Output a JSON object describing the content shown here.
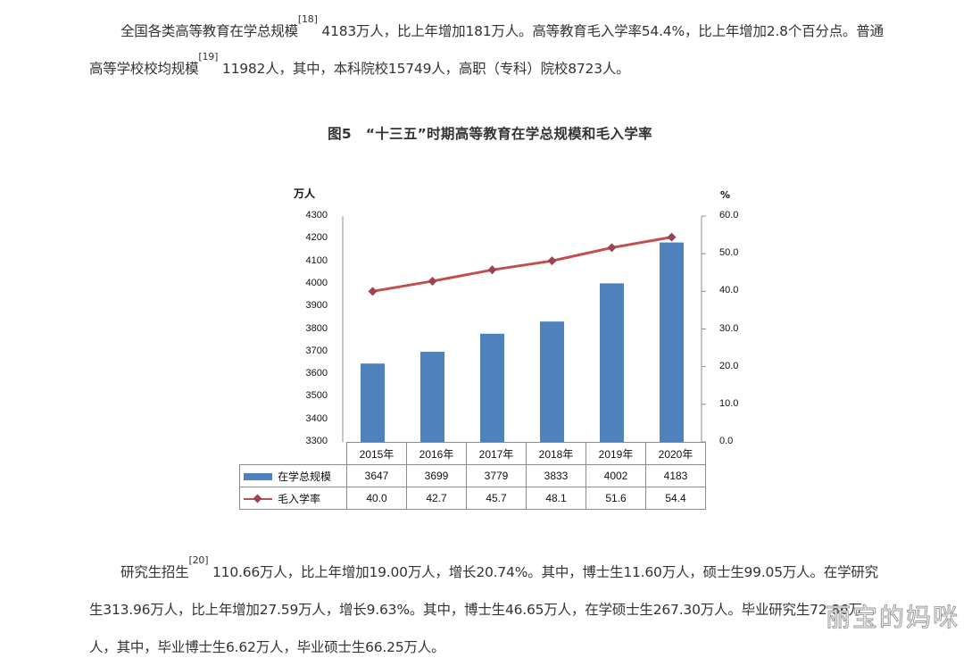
{
  "paragraphs": {
    "p1": {
      "part1": "全国各类高等教育在学总规模",
      "ref1": "[18]",
      "part2": " 4183万人，比上年增加181万人。高等教育毛入学率54.4%，比上年增加2.8个百分点。普通高等学校校均规模",
      "ref2": "[19]",
      "part3": " 11982人，其中，本科院校15749人，高职（专科）院校8723人。"
    },
    "p3": {
      "part1": "研究生招生",
      "ref1": "[20]",
      "part2": " 110.66万人，比上年增加19.00万人，增长20.74%。其中，博士生11.60万人，硕士生99.05万人。在学研究生313.96万人，比上年增加27.59万人，增长9.63%。其中，博士生46.65万人，在学硕士生267.30万人。毕业研究生72.86万人，其中，毕业博士生6.62万人，毕业硕士生66.25万人。"
    }
  },
  "figure": {
    "title": "图5　“十三五”时期高等教育在学总规模和毛入学率"
  },
  "watermark": "丽宝的妈咪",
  "colors": {
    "bar": "#4F81BD",
    "line": "#C0504D",
    "marker": "#9B4356",
    "axis": "#8c8c8c"
  },
  "chart_data": {
    "type": "bar",
    "title": "图5　“十三五”时期高等教育在学总规模和毛入学率",
    "categories": [
      "2015年",
      "2016年",
      "2017年",
      "2018年",
      "2019年",
      "2020年"
    ],
    "series": [
      {
        "name": "在学总规模",
        "type": "bar",
        "axis": "left",
        "values": [
          3647,
          3699,
          3779,
          3833,
          4002,
          4183
        ]
      },
      {
        "name": "毛入学率",
        "type": "line",
        "axis": "right",
        "values": [
          40.0,
          42.7,
          45.7,
          48.1,
          51.6,
          54.4
        ]
      }
    ],
    "ylabel": "万人",
    "ylabel_right": "%",
    "ylim": [
      3300,
      4300
    ],
    "ylim_right": [
      0,
      60
    ],
    "yticks": [
      "4300",
      "4200",
      "4100",
      "4000",
      "3900",
      "3800",
      "3700",
      "3600",
      "3500",
      "3400",
      "3300"
    ],
    "yticks_right": [
      "60.0",
      "50.0",
      "40.0",
      "30.0",
      "20.0",
      "10.0",
      "0.0"
    ],
    "grid": false,
    "legend_position": "data-table",
    "data_table": {
      "rows": [
        {
          "label": "在学总规模",
          "values": [
            "3647",
            "3699",
            "3779",
            "3833",
            "4002",
            "4183"
          ]
        },
        {
          "label": "毛入学率",
          "values": [
            "40.0",
            "42.7",
            "45.7",
            "48.1",
            "51.6",
            "54.4"
          ]
        }
      ]
    }
  }
}
